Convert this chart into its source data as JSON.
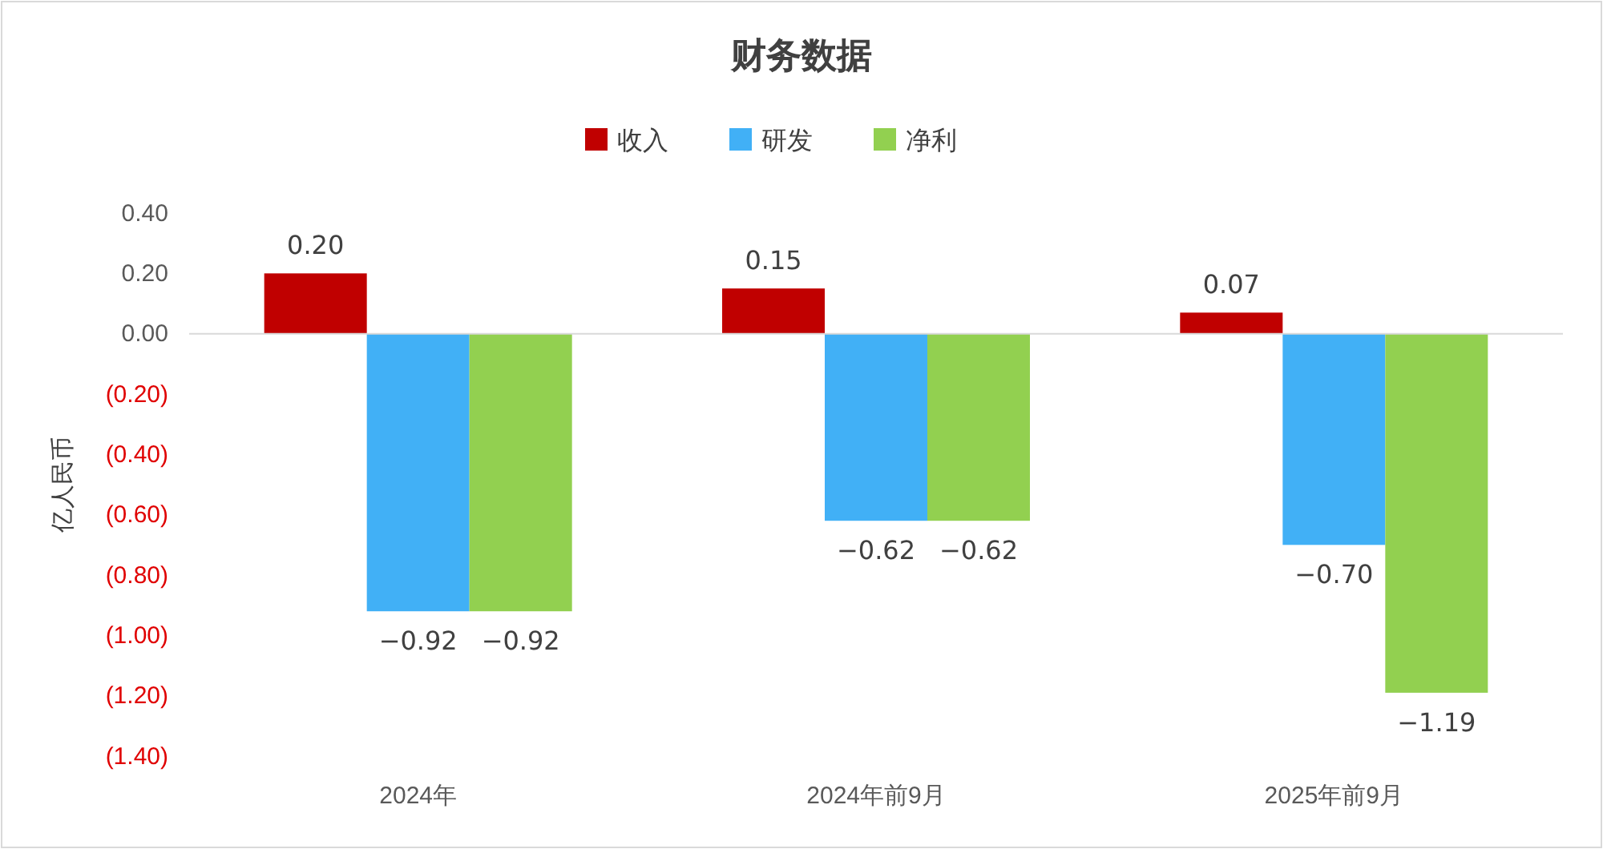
{
  "chart_data": {
    "type": "bar",
    "title": "财务数据",
    "ylabel": "亿人民币",
    "categories": [
      "2024年",
      "2024年前9月",
      "2025年前9月"
    ],
    "series": [
      {
        "name": "收入",
        "color": "#c00000",
        "values": [
          0.2,
          0.15,
          0.07
        ],
        "value_labels": [
          "0.20",
          "0.15",
          "0.07"
        ]
      },
      {
        "name": "研发",
        "color": "#41b0f6",
        "values": [
          -0.92,
          -0.62,
          -0.7
        ],
        "value_labels": [
          "−0.92",
          "−0.62",
          "−0.70"
        ]
      },
      {
        "name": "净利",
        "color": "#92d050",
        "values": [
          -0.92,
          -0.62,
          -1.19
        ],
        "value_labels": [
          "−0.92",
          "−0.62",
          "−1.19"
        ]
      }
    ],
    "ylim": [
      -1.4,
      0.4
    ],
    "yticks": [
      {
        "value": 0.4,
        "label": "0.40"
      },
      {
        "value": 0.2,
        "label": "0.20"
      },
      {
        "value": 0,
        "label": "0.00"
      },
      {
        "value": -0.2,
        "label": "(0.20)"
      },
      {
        "value": -0.4,
        "label": "(0.40)"
      },
      {
        "value": -0.6,
        "label": "(0.60)"
      },
      {
        "value": -0.8,
        "label": "(0.80)"
      },
      {
        "value": -1,
        "label": "(1.00)"
      },
      {
        "value": -1.2,
        "label": "(1.20)"
      },
      {
        "value": -1.4,
        "label": "(1.40)"
      }
    ],
    "ref_lines": [
      {
        "axis": "y",
        "value": 0,
        "color": "#d9d9d9"
      }
    ],
    "legend": "top"
  }
}
